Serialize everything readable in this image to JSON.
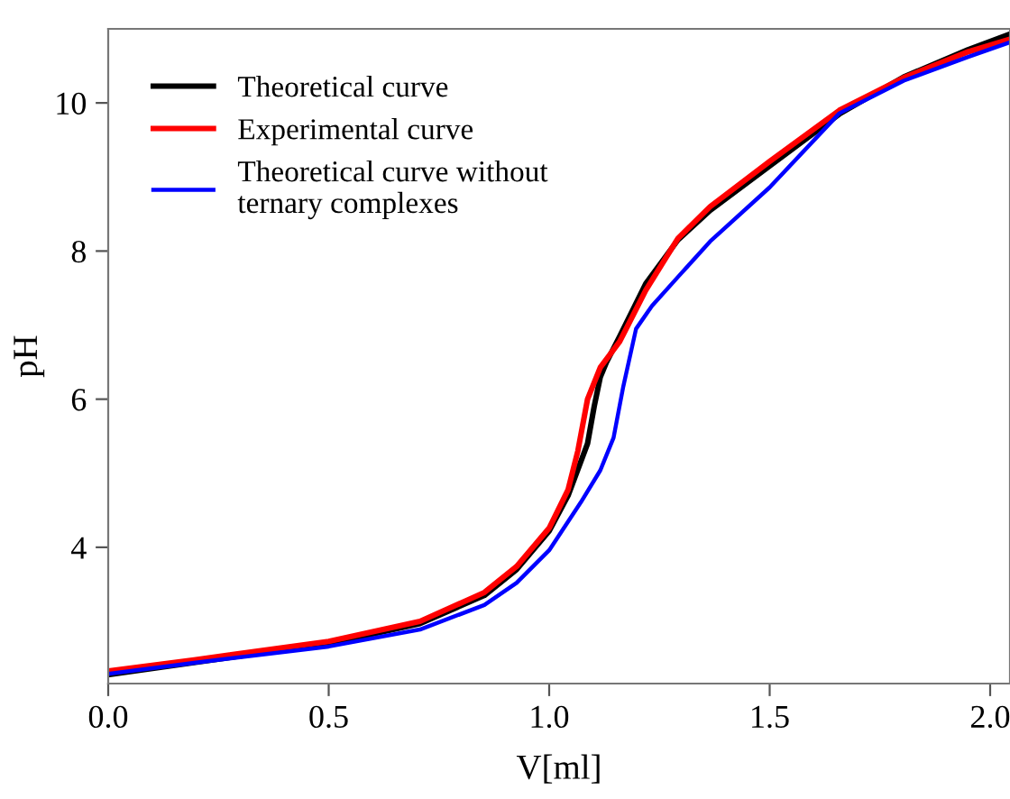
{
  "chart_data": {
    "type": "line",
    "xlabel": "V[ml]",
    "ylabel": "pH",
    "xlim": [
      0,
      2.045
    ],
    "ylim": [
      2.16,
      11
    ],
    "xticks": [
      {
        "value": 0,
        "label": "0.0"
      },
      {
        "value": 0.5,
        "label": "0.5"
      },
      {
        "value": 1.0,
        "label": "1.0"
      },
      {
        "value": 1.5,
        "label": "1.5"
      },
      {
        "value": 2.0,
        "label": "2.0"
      }
    ],
    "yticks": [
      4,
      6,
      8,
      10
    ],
    "grid": false,
    "legend": "top left",
    "marker": "none",
    "line_style": "solid",
    "series": [
      {
        "name": "Theoretical curve",
        "color": "#000000",
        "x": [
          0,
          0.5,
          0.707,
          0.853,
          0.926,
          1.0,
          1.043,
          1.065,
          1.087,
          1.102,
          1.116,
          1.13,
          1.16,
          1.219,
          1.292,
          1.365,
          1.5,
          1.658,
          1.804,
          1.95,
          2.045
        ],
        "values": [
          2.28,
          2.7,
          2.97,
          3.35,
          3.7,
          4.22,
          4.7,
          5.05,
          5.4,
          5.9,
          6.3,
          6.5,
          6.85,
          7.56,
          8.15,
          8.55,
          9.15,
          9.85,
          10.35,
          10.72,
          10.93
        ]
      },
      {
        "name": "Experimental curve",
        "color": "#ff0000",
        "x": [
          0,
          0.195,
          0.5,
          0.707,
          0.853,
          0.926,
          1.0,
          1.043,
          1.065,
          1.087,
          1.116,
          1.16,
          1.219,
          1.292,
          1.365,
          1.5,
          1.658,
          1.804,
          1.95,
          2.045
        ],
        "values": [
          2.33,
          2.48,
          2.73,
          3.0,
          3.39,
          3.74,
          4.26,
          4.78,
          5.3,
          6.0,
          6.43,
          6.78,
          7.47,
          8.17,
          8.6,
          9.21,
          9.9,
          10.34,
          10.69,
          10.86
        ]
      },
      {
        "name": "Theoretical curve without\nternary complexes",
        "color": "#0000ff",
        "x": [
          0,
          0.195,
          0.5,
          0.707,
          0.853,
          0.926,
          1.0,
          1.072,
          1.116,
          1.146,
          1.168,
          1.197,
          1.233,
          1.292,
          1.365,
          1.5,
          1.658,
          1.804,
          1.95,
          2.045
        ],
        "values": [
          2.29,
          2.44,
          2.66,
          2.89,
          3.22,
          3.52,
          3.96,
          4.61,
          5.04,
          5.48,
          6.17,
          6.95,
          7.26,
          7.65,
          8.13,
          8.86,
          9.86,
          10.3,
          10.62,
          10.82
        ]
      }
    ]
  }
}
